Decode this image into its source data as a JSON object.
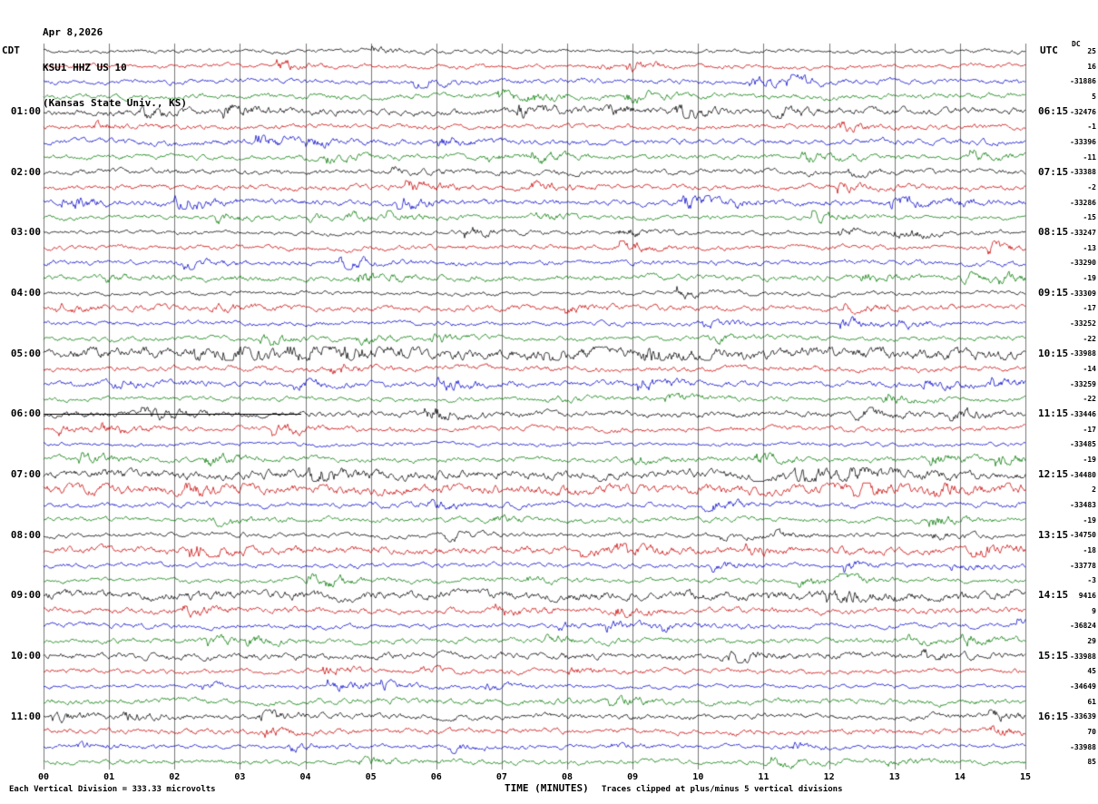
{
  "header": {
    "date": "Apr 8,2026",
    "station": "KSU1 HHZ US 10",
    "location": "(Kansas State Univ., KS)"
  },
  "left_axis": {
    "top_label": "CDT",
    "hour_labels": [
      "01:00",
      "02:00",
      "03:00",
      "04:00",
      "05:00",
      "06:00",
      "07:00",
      "08:00",
      "09:00",
      "10:00",
      "11:00"
    ]
  },
  "right_axis": {
    "top_label": "UTC",
    "dc_header": "DC",
    "hour_labels": [
      "06:15",
      "07:15",
      "08:15",
      "09:15",
      "10:15",
      "11:15",
      "12:15",
      "13:15",
      "14:15",
      "15:15",
      "16:15"
    ]
  },
  "x_axis": {
    "tick_labels": [
      "00",
      "01",
      "02",
      "03",
      "04",
      "05",
      "06",
      "07",
      "08",
      "09",
      "10",
      "11",
      "12",
      "13",
      "14",
      "15"
    ],
    "title": "TIME (MINUTES)"
  },
  "footer": {
    "scale_note": "Each Vertical Division =  333.33 microvolts",
    "clip_note": "Traces clipped at plus/minus 5 vertical divisions"
  },
  "colors": {
    "text": "#000000",
    "grid": "#777777",
    "background": "#ffffff"
  },
  "chart_data": {
    "type": "line",
    "subtype": "helicorder-seismogram",
    "title": "KSU1 HHZ US 10 (Kansas State Univ., KS) Apr 8,2026",
    "xlabel": "TIME (MINUTES)",
    "x_range_minutes": [
      0,
      15
    ],
    "x_ticks": [
      "00",
      "01",
      "02",
      "03",
      "04",
      "05",
      "06",
      "07",
      "08",
      "09",
      "10",
      "11",
      "12",
      "13",
      "14",
      "15"
    ],
    "minutes_per_line": 15,
    "lines_per_hour": 4,
    "left_time_zone": "CDT",
    "right_time_zone": "UTC",
    "trace_color_cycle": [
      "#000000",
      "#c80000",
      "#0000c8",
      "#007800"
    ],
    "scale": "Each Vertical Division = 333.33 microvolts",
    "clipping": "Traces clipped at plus/minus 5 vertical divisions",
    "waveform_note": "continuous background seismic noise traces; individual sample values not resolvable from image",
    "segments": [
      {
        "t": "00:00",
        "c": "black",
        "dc": 25
      },
      {
        "t": "00:15",
        "c": "red",
        "dc": 16
      },
      {
        "t": "00:30",
        "c": "blue",
        "dc": -31886
      },
      {
        "t": "00:45",
        "c": "green",
        "dc": 5
      },
      {
        "t": "01:00",
        "c": "black",
        "dc": -32476
      },
      {
        "t": "01:15",
        "c": "red",
        "dc": -1
      },
      {
        "t": "01:30",
        "c": "blue",
        "dc": -33396
      },
      {
        "t": "01:45",
        "c": "green",
        "dc": -11
      },
      {
        "t": "02:00",
        "c": "black",
        "dc": -33388
      },
      {
        "t": "02:15",
        "c": "red",
        "dc": -2
      },
      {
        "t": "02:30",
        "c": "blue",
        "dc": -33286
      },
      {
        "t": "02:45",
        "c": "green",
        "dc": -15
      },
      {
        "t": "03:00",
        "c": "black",
        "dc": -33247
      },
      {
        "t": "03:15",
        "c": "red",
        "dc": -13
      },
      {
        "t": "03:30",
        "c": "blue",
        "dc": -33290
      },
      {
        "t": "03:45",
        "c": "green",
        "dc": -19
      },
      {
        "t": "04:00",
        "c": "black",
        "dc": -33309
      },
      {
        "t": "04:15",
        "c": "red",
        "dc": -17
      },
      {
        "t": "04:30",
        "c": "blue",
        "dc": -33252
      },
      {
        "t": "04:45",
        "c": "green",
        "dc": -22
      },
      {
        "t": "05:00",
        "c": "black",
        "dc": -33988
      },
      {
        "t": "05:15",
        "c": "red",
        "dc": -14
      },
      {
        "t": "05:30",
        "c": "blue",
        "dc": -33259
      },
      {
        "t": "05:45",
        "c": "green",
        "dc": -22
      },
      {
        "t": "06:00",
        "c": "black",
        "dc": -33446
      },
      {
        "t": "06:15",
        "c": "red",
        "dc": -17
      },
      {
        "t": "06:30",
        "c": "blue",
        "dc": -33485
      },
      {
        "t": "06:45",
        "c": "green",
        "dc": -19
      },
      {
        "t": "07:00",
        "c": "black",
        "dc": -34480
      },
      {
        "t": "07:15",
        "c": "red",
        "dc": 2
      },
      {
        "t": "07:30",
        "c": "blue",
        "dc": -33483
      },
      {
        "t": "07:45",
        "c": "green",
        "dc": -19
      },
      {
        "t": "08:00",
        "c": "black",
        "dc": -34750
      },
      {
        "t": "08:15",
        "c": "red",
        "dc": -18
      },
      {
        "t": "08:30",
        "c": "blue",
        "dc": -33778
      },
      {
        "t": "08:45",
        "c": "green",
        "dc": -3
      },
      {
        "t": "09:00",
        "c": "black",
        "dc": 9416
      },
      {
        "t": "09:15",
        "c": "red",
        "dc": 9
      },
      {
        "t": "09:30",
        "c": "blue",
        "dc": -36824
      },
      {
        "t": "09:45",
        "c": "green",
        "dc": 29
      },
      {
        "t": "10:00",
        "c": "black",
        "dc": -33988
      },
      {
        "t": "10:15",
        "c": "red",
        "dc": 45
      },
      {
        "t": "10:30",
        "c": "blue",
        "dc": -34649
      },
      {
        "t": "10:45",
        "c": "green",
        "dc": 61
      },
      {
        "t": "11:00",
        "c": "black",
        "dc": -33639
      },
      {
        "t": "11:15",
        "c": "red",
        "dc": 70
      },
      {
        "t": "11:30",
        "c": "blue",
        "dc": -33988
      },
      {
        "t": "11:45",
        "c": "green",
        "dc": 85
      }
    ]
  }
}
